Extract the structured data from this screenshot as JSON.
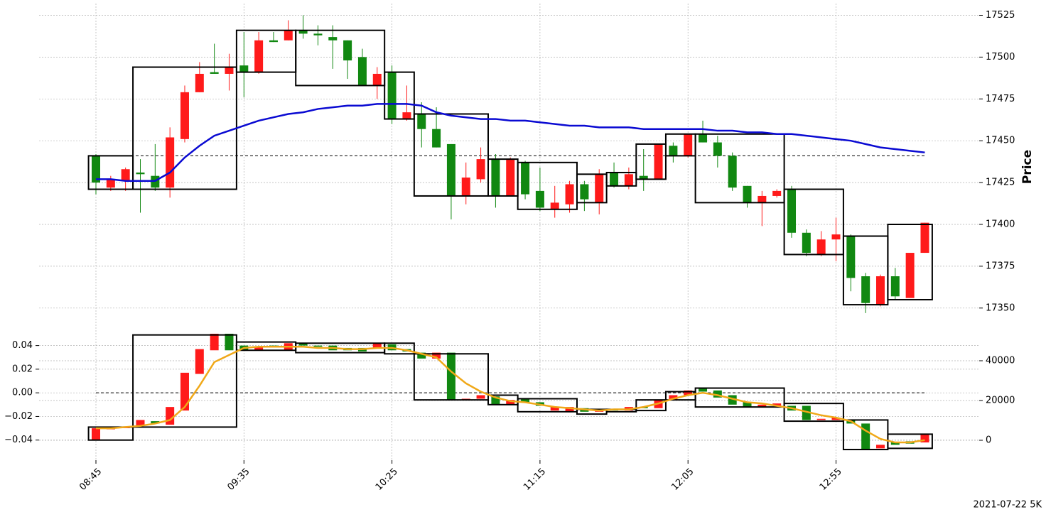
{
  "chart_data": [
    {
      "type": "candlestick",
      "ylabel": "Price",
      "categories": [
        "08:45",
        null,
        null,
        null,
        null,
        null,
        null,
        null,
        null,
        null,
        "09:35",
        null,
        null,
        null,
        null,
        null,
        null,
        null,
        null,
        null,
        "10:25",
        null,
        null,
        null,
        null,
        null,
        null,
        null,
        null,
        null,
        "11:15",
        null,
        null,
        null,
        null,
        null,
        null,
        null,
        null,
        null,
        "12:05",
        null,
        null,
        null,
        null,
        null,
        null,
        null,
        null,
        null,
        "12:55",
        null,
        null,
        null,
        null,
        null,
        null
      ],
      "open": [
        17441,
        17422,
        17426,
        17431,
        17429,
        17422,
        17451,
        17479,
        17491,
        17490,
        17495,
        17491,
        17510,
        17510,
        17516,
        17514,
        17512,
        17510,
        17500,
        17483,
        17491,
        17463,
        17466,
        17457,
        17448,
        17417,
        17427,
        17439,
        17417,
        17437,
        17420,
        17409,
        17412,
        17424,
        17413,
        17431,
        17423,
        17429,
        17427,
        17447,
        17441,
        17454,
        17449,
        17441,
        17423,
        17413,
        17417,
        17421,
        17395,
        17382,
        17391,
        17393,
        17369,
        17352,
        17369,
        17356,
        17383
      ],
      "high": [
        17442,
        17429,
        17434,
        17439,
        17448,
        17458,
        17483,
        17497,
        17508,
        17502,
        17515,
        17515,
        17515,
        17522,
        17525,
        17519,
        17519,
        17510,
        17505,
        17494,
        17495,
        17483,
        17473,
        17470,
        17448,
        17437,
        17446,
        17442,
        17440,
        17438,
        17434,
        17423,
        17426,
        17426,
        17433,
        17437,
        17434,
        17445,
        17448,
        17449,
        17454,
        17462,
        17453,
        17443,
        17423,
        17420,
        17421,
        17423,
        17397,
        17396,
        17404,
        17394,
        17371,
        17370,
        17374,
        17383,
        17401
      ],
      "low": [
        17418,
        17420,
        17420,
        17407,
        17420,
        17416,
        17449,
        17479,
        17490,
        17480,
        17476,
        17490,
        17509,
        17510,
        17511,
        17507,
        17493,
        17487,
        17483,
        17475,
        17460,
        17462,
        17446,
        17446,
        17403,
        17412,
        17425,
        17410,
        17417,
        17415,
        17408,
        17404,
        17407,
        17408,
        17406,
        17422,
        17421,
        17420,
        17427,
        17437,
        17440,
        17449,
        17434,
        17420,
        17410,
        17399,
        17416,
        17392,
        17381,
        17381,
        17378,
        17360,
        17347,
        17351,
        17355,
        17356,
        17383
      ],
      "close": [
        17425,
        17427,
        17433,
        17430,
        17422,
        17452,
        17479,
        17490,
        17490,
        17494,
        17491,
        17510,
        17509,
        17516,
        17514,
        17513,
        17510,
        17498,
        17483,
        17490,
        17463,
        17467,
        17457,
        17446,
        17417,
        17428,
        17439,
        17417,
        17439,
        17418,
        17410,
        17413,
        17424,
        17415,
        17430,
        17423,
        17430,
        17427,
        17448,
        17441,
        17454,
        17449,
        17441,
        17422,
        17413,
        17417,
        17420,
        17395,
        17383,
        17391,
        17394,
        17368,
        17353,
        17369,
        17357,
        17383,
        17401
      ],
      "up_color": "#ff1a1a",
      "down_color": "#118811",
      "series": [
        {
          "color": "#0a0ad2",
          "values": [
            17427,
            17427,
            17426,
            17426,
            17426,
            17431,
            17440,
            17447,
            17453,
            17456,
            17459,
            17462,
            17464,
            17466,
            17467,
            17469,
            17470,
            17471,
            17471,
            17472,
            17472,
            17472,
            17471,
            17467,
            17465,
            17464,
            17463,
            17463,
            17462,
            17462,
            17461,
            17460,
            17459,
            17459,
            17458,
            17458,
            17458,
            17457,
            17457,
            17457,
            17457,
            17457,
            17456,
            17456,
            17455,
            17455,
            17454,
            17454,
            17453,
            17452,
            17451,
            17450,
            17448,
            17446,
            17445,
            17444,
            17443
          ]
        }
      ],
      "hline": 17441,
      "boxes": [
        {
          "from": 0,
          "to": 2,
          "high": 17441,
          "low": 17421
        },
        {
          "from": 3,
          "to": 9,
          "high": 17494,
          "low": 17421
        },
        {
          "from": 10,
          "to": 13,
          "high": 17516,
          "low": 17491
        },
        {
          "from": 14,
          "to": 19,
          "high": 17516,
          "low": 17483
        },
        {
          "from": 20,
          "to": 21,
          "high": 17491,
          "low": 17463
        },
        {
          "from": 22,
          "to": 26,
          "high": 17466,
          "low": 17417
        },
        {
          "from": 27,
          "to": 28,
          "high": 17439,
          "low": 17417
        },
        {
          "from": 29,
          "to": 32,
          "high": 17437,
          "low": 17409
        },
        {
          "from": 33,
          "to": 34,
          "high": 17430,
          "low": 17413
        },
        {
          "from": 35,
          "to": 36,
          "high": 17431,
          "low": 17423
        },
        {
          "from": 37,
          "to": 38,
          "high": 17448,
          "low": 17427
        },
        {
          "from": 39,
          "to": 40,
          "high": 17454,
          "low": 17441
        },
        {
          "from": 41,
          "to": 46,
          "high": 17454,
          "low": 17413
        },
        {
          "from": 47,
          "to": 50,
          "high": 17421,
          "low": 17382
        },
        {
          "from": 51,
          "to": 53,
          "high": 17393,
          "low": 17352
        },
        {
          "from": 54,
          "to": 56,
          "high": 17400,
          "low": 17355
        }
      ],
      "ylim": [
        17341,
        17532
      ],
      "yticks": [
        17350,
        17375,
        17400,
        17425,
        17450,
        17475,
        17500,
        17525
      ],
      "grid": true
    },
    {
      "type": "candlestick",
      "caption": "2021-07-22 5K",
      "open": [
        -0.04,
        -0.03,
        -0.029,
        -0.028,
        -0.024,
        -0.027,
        -0.015,
        0.016,
        0.036,
        0.05,
        0.04,
        0.036,
        0.04,
        0.036,
        0.042,
        0.04,
        0.04,
        0.038,
        0.038,
        0.038,
        0.041,
        0.037,
        0.034,
        0.029,
        0.034,
        -0.006,
        -0.005,
        -0.003,
        -0.01,
        -0.005,
        -0.008,
        -0.015,
        -0.016,
        -0.013,
        -0.016,
        -0.014,
        -0.015,
        -0.012,
        -0.013,
        -0.006,
        -0.002,
        0.004,
        0.002,
        -0.002,
        -0.008,
        -0.012,
        -0.011,
        -0.011,
        -0.011,
        -0.023,
        -0.023,
        -0.023,
        -0.026,
        -0.047,
        -0.042,
        -0.041,
        -0.042
      ],
      "close": [
        -0.03,
        -0.03,
        -0.029,
        -0.023,
        -0.026,
        -0.012,
        0.017,
        0.037,
        0.05,
        0.036,
        0.036,
        0.039,
        0.039,
        0.042,
        0.04,
        0.039,
        0.036,
        0.036,
        0.035,
        0.042,
        0.036,
        0.035,
        0.029,
        0.034,
        -0.006,
        -0.005,
        -0.002,
        -0.01,
        -0.006,
        -0.008,
        -0.011,
        -0.012,
        -0.012,
        -0.016,
        -0.014,
        -0.015,
        -0.012,
        -0.013,
        -0.006,
        -0.002,
        0.002,
        0.001,
        -0.004,
        -0.01,
        -0.012,
        -0.01,
        -0.009,
        -0.015,
        -0.023,
        -0.022,
        -0.021,
        -0.026,
        -0.048,
        -0.044,
        -0.044,
        -0.043,
        -0.035
      ],
      "up_color": "#ff1a1a",
      "down_color": "#118811",
      "series": [
        {
          "color": "#f0a818",
          "values": [
            -0.03,
            -0.03,
            -0.029,
            -0.028,
            -0.026,
            -0.023,
            -0.012,
            0.006,
            0.026,
            0.032,
            0.038,
            0.039,
            0.039,
            0.039,
            0.039,
            0.038,
            0.038,
            0.037,
            0.037,
            0.038,
            0.038,
            0.036,
            0.033,
            0.03,
            0.018,
            0.008,
            0.001,
            -0.004,
            -0.007,
            -0.008,
            -0.01,
            -0.012,
            -0.013,
            -0.014,
            -0.015,
            -0.014,
            -0.014,
            -0.012,
            -0.009,
            -0.005,
            -0.002,
            0.0,
            -0.002,
            -0.005,
            -0.008,
            -0.009,
            -0.011,
            -0.013,
            -0.016,
            -0.019,
            -0.021,
            -0.024,
            -0.032,
            -0.039,
            -0.042,
            -0.042,
            -0.04
          ]
        }
      ],
      "hline": 0,
      "boxes": [
        {
          "from": 0,
          "to": 2,
          "high": -0.029,
          "low": -0.04
        },
        {
          "from": 3,
          "to": 9,
          "high": 0.049,
          "low": -0.029
        },
        {
          "from": 10,
          "to": 13,
          "high": 0.043,
          "low": 0.036
        },
        {
          "from": 14,
          "to": 19,
          "high": 0.042,
          "low": 0.034
        },
        {
          "from": 20,
          "to": 21,
          "high": 0.042,
          "low": 0.033
        },
        {
          "from": 22,
          "to": 26,
          "high": 0.033,
          "low": -0.006
        },
        {
          "from": 27,
          "to": 28,
          "high": -0.002,
          "low": -0.01
        },
        {
          "from": 29,
          "to": 32,
          "high": -0.005,
          "low": -0.016
        },
        {
          "from": 33,
          "to": 34,
          "high": -0.014,
          "low": -0.018
        },
        {
          "from": 35,
          "to": 36,
          "high": -0.014,
          "low": -0.016
        },
        {
          "from": 37,
          "to": 38,
          "high": -0.006,
          "low": -0.015
        },
        {
          "from": 39,
          "to": 40,
          "high": 0.001,
          "low": -0.006
        },
        {
          "from": 41,
          "to": 46,
          "high": 0.004,
          "low": -0.012
        },
        {
          "from": 47,
          "to": 50,
          "high": -0.009,
          "low": -0.024
        },
        {
          "from": 51,
          "to": 53,
          "high": -0.023,
          "low": -0.048
        },
        {
          "from": 54,
          "to": 56,
          "high": -0.035,
          "low": -0.047
        }
      ],
      "ylim": [
        -0.057,
        0.056
      ],
      "yticks": [
        {
          "value": -0.04,
          "label": "−0.04"
        },
        {
          "value": -0.02,
          "label": "−0.02"
        },
        {
          "value": 0,
          "label": "0.00"
        },
        {
          "value": 0.02,
          "label": "0.02"
        },
        {
          "value": 0.04,
          "label": "0.04"
        }
      ],
      "y2lim": [
        -10000,
        57143
      ],
      "y2ticks": [
        0,
        20000,
        40000
      ],
      "grid": true
    }
  ]
}
